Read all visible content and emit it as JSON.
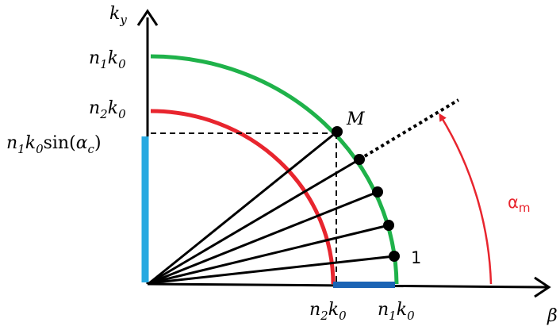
{
  "axes": {
    "y_label": {
      "base": "k",
      "sub": "y"
    },
    "x_label": {
      "base": "β"
    }
  },
  "y_ticks": {
    "n1k0": {
      "n": "n",
      "n_sub": "1",
      "k": "k",
      "k_sub": "0"
    },
    "n2k0": {
      "n": "n",
      "n_sub": "2",
      "k": "k",
      "k_sub": "0"
    },
    "n1k0sin": {
      "n": "n",
      "n_sub": "1",
      "k": "k",
      "k_sub": "0",
      "fn": "sin(",
      "alpha": "α",
      "alpha_sub": "c",
      "close": ")"
    }
  },
  "x_ticks": {
    "n2k0": {
      "n": "n",
      "n_sub": "2",
      "k": "k",
      "k_sub": "0"
    },
    "n1k0": {
      "n": "n",
      "n_sub": "1",
      "k": "k",
      "k_sub": "0"
    }
  },
  "point_labels": {
    "M": "M",
    "one": "1"
  },
  "angle_label": {
    "base": "α",
    "sub": "m"
  },
  "colors": {
    "outer_arc": "#1fb24a",
    "inner_arc": "#e8252e",
    "vertical_bar": "#27a9e1",
    "horizontal_bar": "#1b64b4",
    "angle": "#e8252e",
    "ink": "#000000"
  }
}
